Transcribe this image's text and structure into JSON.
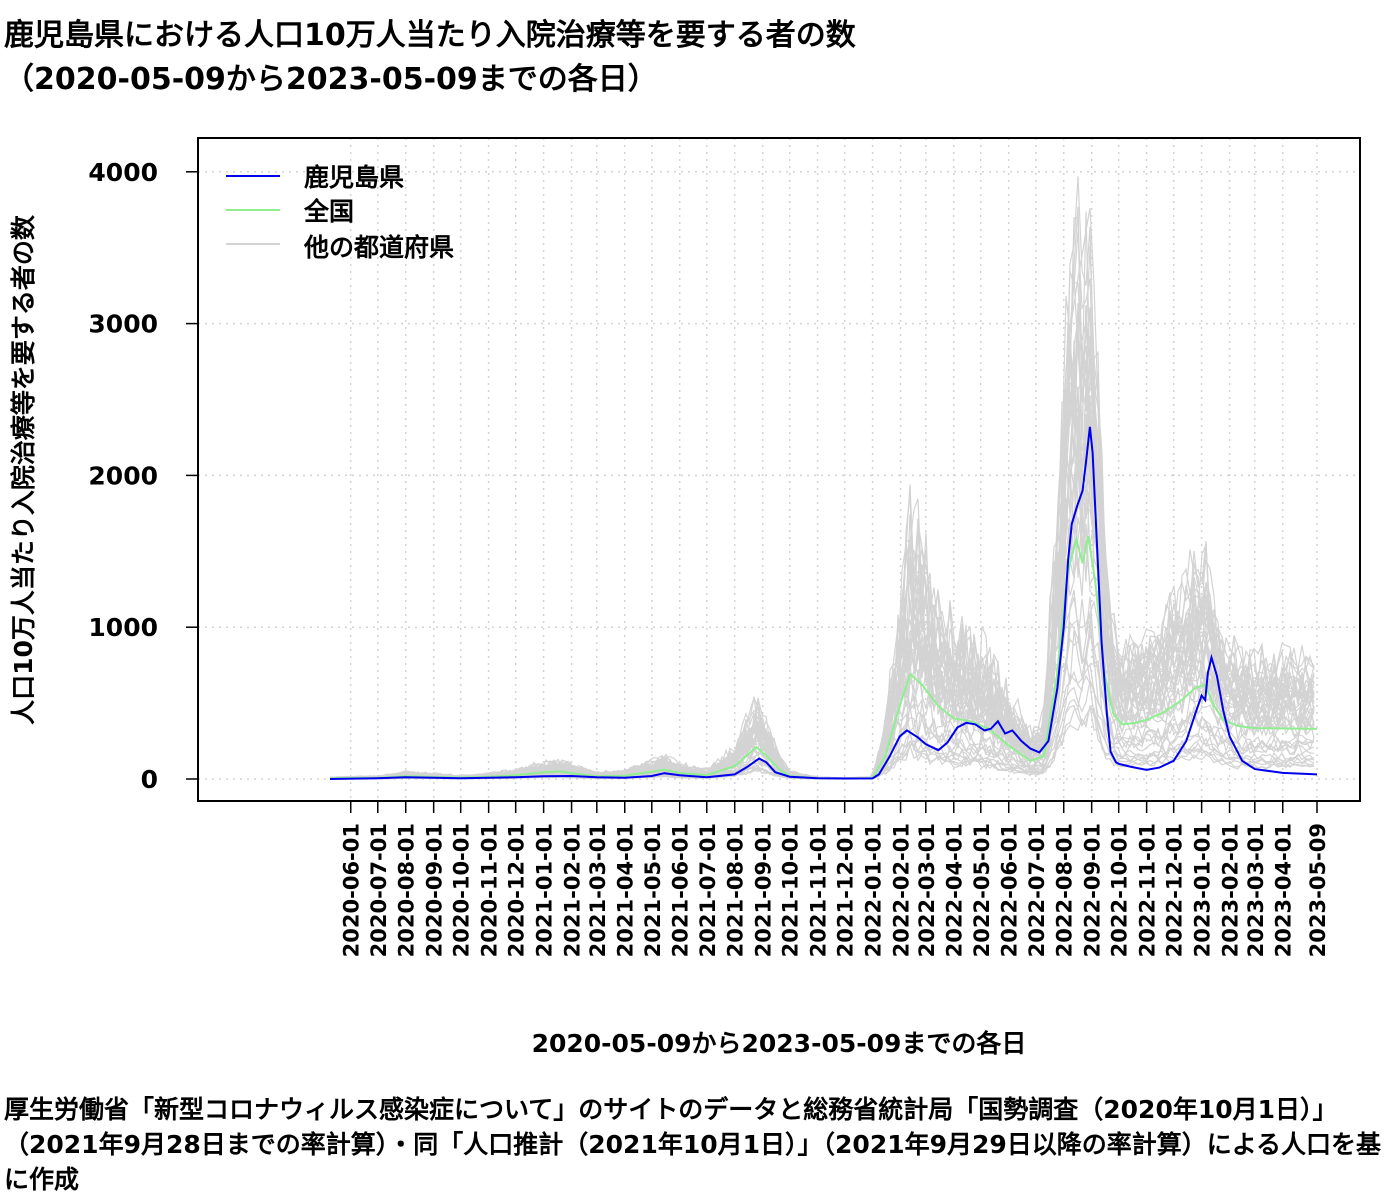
{
  "title_lines": [
    "鹿児島県における人口10万人当たり入院治療等を要する者の数",
    "（2020-05-09から2023-05-09までの各日）"
  ],
  "caption": "厚生労働省「新型コロナウィルス感染症について」のサイトのデータと総務省統計局「国勢調査（2020年10月1日）」（2021年9月28日までの率計算）・同「人口推計（2021年10月1日）」（2021年9月29日以降の率計算）による人口を基に作成",
  "chart_data": {
    "type": "line",
    "xlabel": "2020-05-09から2023-05-09までの各日",
    "ylabel": "人口10万人当たり入院治療等を要する者の数",
    "x_range": [
      "2020-05-09",
      "2023-05-09"
    ],
    "ylim": [
      0,
      4200
    ],
    "yticks": [
      0,
      1000,
      2000,
      3000,
      4000
    ],
    "xticks": [
      "2020-06-01",
      "2020-07-01",
      "2020-08-01",
      "2020-09-01",
      "2020-10-01",
      "2020-11-01",
      "2020-12-01",
      "2021-01-01",
      "2021-02-01",
      "2021-03-01",
      "2021-04-01",
      "2021-05-01",
      "2021-06-01",
      "2021-07-01",
      "2021-08-01",
      "2021-09-01",
      "2021-10-01",
      "2021-11-01",
      "2021-12-01",
      "2022-01-01",
      "2022-02-01",
      "2022-03-01",
      "2022-04-01",
      "2022-05-01",
      "2022-06-01",
      "2022-07-01",
      "2022-08-01",
      "2022-09-01",
      "2022-10-01",
      "2022-11-01",
      "2022-12-01",
      "2023-01-01",
      "2023-02-01",
      "2023-03-01",
      "2023-04-01",
      "2023-05-09"
    ],
    "grid": true,
    "legend_position": "top-left",
    "series": [
      {
        "name": "鹿児島県",
        "color": "#0000ee",
        "points": [
          [
            "2020-05-09",
            0
          ],
          [
            "2020-07-01",
            5
          ],
          [
            "2020-08-01",
            12
          ],
          [
            "2020-09-01",
            8
          ],
          [
            "2020-10-01",
            5
          ],
          [
            "2020-11-01",
            8
          ],
          [
            "2020-12-01",
            12
          ],
          [
            "2021-01-01",
            18
          ],
          [
            "2021-02-01",
            20
          ],
          [
            "2021-03-01",
            12
          ],
          [
            "2021-04-01",
            8
          ],
          [
            "2021-05-01",
            20
          ],
          [
            "2021-05-15",
            38
          ],
          [
            "2021-06-01",
            25
          ],
          [
            "2021-07-01",
            12
          ],
          [
            "2021-08-01",
            30
          ],
          [
            "2021-08-15",
            80
          ],
          [
            "2021-08-28",
            135
          ],
          [
            "2021-09-05",
            110
          ],
          [
            "2021-09-15",
            45
          ],
          [
            "2021-10-01",
            15
          ],
          [
            "2021-11-01",
            5
          ],
          [
            "2021-12-01",
            3
          ],
          [
            "2022-01-01",
            4
          ],
          [
            "2022-01-08",
            30
          ],
          [
            "2022-01-20",
            150
          ],
          [
            "2022-01-31",
            280
          ],
          [
            "2022-02-08",
            320
          ],
          [
            "2022-02-20",
            275
          ],
          [
            "2022-03-01",
            230
          ],
          [
            "2022-03-15",
            190
          ],
          [
            "2022-03-25",
            240
          ],
          [
            "2022-04-05",
            340
          ],
          [
            "2022-04-15",
            370
          ],
          [
            "2022-04-25",
            360
          ],
          [
            "2022-05-05",
            320
          ],
          [
            "2022-05-12",
            330
          ],
          [
            "2022-05-20",
            380
          ],
          [
            "2022-05-28",
            300
          ],
          [
            "2022-06-05",
            320
          ],
          [
            "2022-06-15",
            250
          ],
          [
            "2022-06-25",
            200
          ],
          [
            "2022-07-05",
            175
          ],
          [
            "2022-07-15",
            250
          ],
          [
            "2022-07-25",
            600
          ],
          [
            "2022-08-01",
            1000
          ],
          [
            "2022-08-06",
            1450
          ],
          [
            "2022-08-10",
            1680
          ],
          [
            "2022-08-16",
            1800
          ],
          [
            "2022-08-22",
            1900
          ],
          [
            "2022-08-26",
            2100
          ],
          [
            "2022-08-30",
            2320
          ],
          [
            "2022-09-02",
            2150
          ],
          [
            "2022-09-06",
            1650
          ],
          [
            "2022-09-12",
            900
          ],
          [
            "2022-09-18",
            420
          ],
          [
            "2022-09-22",
            180
          ],
          [
            "2022-09-28",
            110
          ],
          [
            "2022-10-01",
            100
          ],
          [
            "2022-10-15",
            80
          ],
          [
            "2022-11-01",
            60
          ],
          [
            "2022-11-15",
            75
          ],
          [
            "2022-12-01",
            120
          ],
          [
            "2022-12-15",
            250
          ],
          [
            "2022-12-25",
            430
          ],
          [
            "2023-01-01",
            550
          ],
          [
            "2023-01-05",
            520
          ],
          [
            "2023-01-08",
            700
          ],
          [
            "2023-01-12",
            800
          ],
          [
            "2023-01-18",
            680
          ],
          [
            "2023-01-25",
            450
          ],
          [
            "2023-02-01",
            280
          ],
          [
            "2023-02-15",
            120
          ],
          [
            "2023-03-01",
            65
          ],
          [
            "2023-04-01",
            40
          ],
          [
            "2023-05-09",
            30
          ]
        ]
      },
      {
        "name": "全国",
        "color": "#90ee90",
        "points": [
          [
            "2020-05-09",
            5
          ],
          [
            "2020-07-01",
            8
          ],
          [
            "2020-08-01",
            18
          ],
          [
            "2020-09-01",
            14
          ],
          [
            "2020-10-01",
            10
          ],
          [
            "2020-11-01",
            15
          ],
          [
            "2020-12-01",
            25
          ],
          [
            "2021-01-01",
            45
          ],
          [
            "2021-01-20",
            50
          ],
          [
            "2021-02-01",
            38
          ],
          [
            "2021-03-01",
            18
          ],
          [
            "2021-04-01",
            22
          ],
          [
            "2021-05-01",
            48
          ],
          [
            "2021-05-15",
            62
          ],
          [
            "2021-06-01",
            40
          ],
          [
            "2021-07-01",
            25
          ],
          [
            "2021-08-01",
            85
          ],
          [
            "2021-08-25",
            210
          ],
          [
            "2021-09-05",
            155
          ],
          [
            "2021-09-20",
            60
          ],
          [
            "2021-10-01",
            20
          ],
          [
            "2021-11-01",
            5
          ],
          [
            "2021-12-01",
            3
          ],
          [
            "2022-01-01",
            6
          ],
          [
            "2022-01-15",
            150
          ],
          [
            "2022-02-01",
            500
          ],
          [
            "2022-02-12",
            690
          ],
          [
            "2022-02-25",
            620
          ],
          [
            "2022-03-15",
            480
          ],
          [
            "2022-04-01",
            400
          ],
          [
            "2022-04-20",
            380
          ],
          [
            "2022-05-10",
            330
          ],
          [
            "2022-06-01",
            220
          ],
          [
            "2022-06-25",
            120
          ],
          [
            "2022-07-10",
            150
          ],
          [
            "2022-07-25",
            700
          ],
          [
            "2022-08-05",
            1350
          ],
          [
            "2022-08-15",
            1580
          ],
          [
            "2022-08-22",
            1420
          ],
          [
            "2022-08-28",
            1600
          ],
          [
            "2022-09-05",
            1300
          ],
          [
            "2022-09-15",
            700
          ],
          [
            "2022-09-25",
            430
          ],
          [
            "2022-10-05",
            360
          ],
          [
            "2022-10-20",
            370
          ],
          [
            "2022-11-01",
            390
          ],
          [
            "2022-11-20",
            440
          ],
          [
            "2022-12-10",
            520
          ],
          [
            "2022-12-25",
            600
          ],
          [
            "2023-01-05",
            620
          ],
          [
            "2023-01-15",
            480
          ],
          [
            "2023-01-25",
            390
          ],
          [
            "2023-02-10",
            350
          ],
          [
            "2023-03-01",
            335
          ],
          [
            "2023-05-09",
            330
          ]
        ]
      }
    ],
    "background_series": {
      "name": "他の都道府県",
      "color": "#d3d3d3"
    }
  }
}
